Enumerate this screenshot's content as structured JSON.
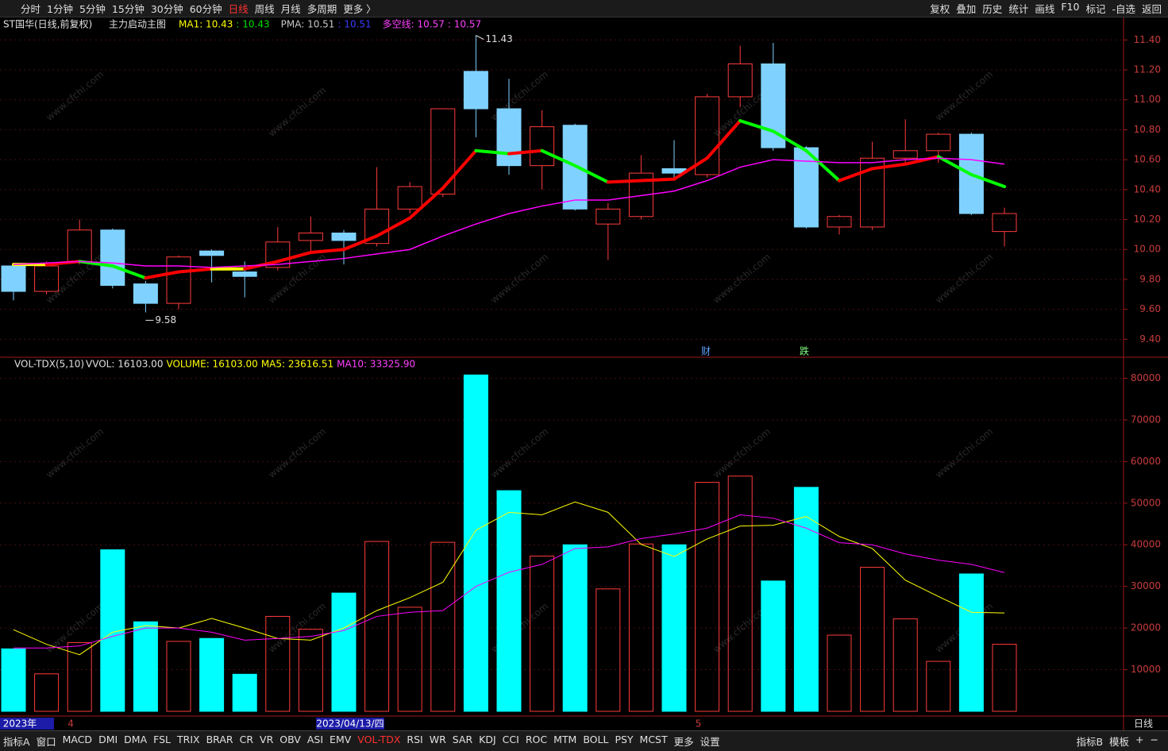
{
  "toolbar": {
    "left": [
      "分时",
      "1分钟",
      "5分钟",
      "15分钟",
      "30分钟",
      "60分钟",
      "日线",
      "周线",
      "月线",
      "多周期",
      "更多 〉"
    ],
    "right": [
      "复权",
      "叠加",
      "历史",
      "统计",
      "画线",
      "F10",
      "标记",
      "-自选",
      "返回"
    ]
  },
  "chart_data": [
    {
      "type": "candlestick",
      "title": "ST国华(日线,前复权)",
      "subtitle": "主力启动主图",
      "legend": [
        {
          "text": "MA1: 10.43",
          "color": "#ffff00"
        },
        {
          "text": ": 10.43",
          "color": "#00e000"
        },
        {
          "text": "PMA: 10.51",
          "color": "#c8c8c8"
        },
        {
          "text": ": 10.51",
          "color": "#3a3aff"
        },
        {
          "text": "多空线: 10.57",
          "color": "#ff40ff"
        },
        {
          "text": ": 10.57",
          "color": "#ff40ff"
        }
      ],
      "categories": [
        "2023年",
        null,
        "4",
        null,
        null,
        null,
        null,
        null,
        null,
        null,
        "2023/04/13/四",
        null,
        null,
        null,
        null,
        null,
        null,
        null,
        null,
        null,
        null,
        "5",
        null,
        null,
        null,
        null,
        null,
        null,
        null,
        null,
        null
      ],
      "open": [
        9.89,
        9.72,
        9.92,
        10.13,
        9.77,
        9.64,
        9.99,
        9.85,
        9.88,
        10.06,
        10.11,
        10.04,
        10.27,
        10.37,
        11.19,
        10.94,
        10.56,
        10.83,
        10.17,
        10.22,
        10.54,
        10.5,
        11.02,
        11.24,
        10.68,
        10.15,
        10.15,
        10.61,
        10.66,
        10.77,
        10.12
      ],
      "high": [
        9.9,
        9.92,
        10.2,
        10.14,
        9.79,
        9.96,
        10.0,
        9.92,
        10.15,
        10.22,
        10.13,
        10.55,
        10.45,
        10.94,
        11.43,
        11.14,
        10.93,
        10.84,
        10.31,
        10.63,
        10.73,
        11.04,
        11.36,
        11.38,
        10.69,
        10.23,
        10.72,
        10.87,
        10.78,
        10.78,
        10.28
      ],
      "low": [
        9.66,
        9.7,
        9.9,
        9.74,
        9.58,
        9.6,
        9.78,
        9.68,
        9.86,
        9.98,
        9.9,
        10.02,
        10.24,
        10.35,
        10.75,
        10.5,
        10.4,
        10.26,
        9.93,
        10.2,
        10.47,
        10.48,
        10.95,
        10.66,
        10.14,
        10.1,
        10.13,
        10.58,
        10.58,
        10.23,
        10.02
      ],
      "close": [
        9.72,
        9.89,
        10.13,
        9.76,
        9.64,
        9.95,
        9.96,
        9.82,
        10.05,
        10.11,
        10.06,
        10.27,
        10.42,
        10.94,
        10.94,
        10.56,
        10.82,
        10.27,
        10.27,
        10.51,
        10.51,
        11.02,
        11.24,
        10.68,
        10.15,
        10.22,
        10.61,
        10.66,
        10.77,
        10.24,
        10.24
      ],
      "up_color": "#ff3b3b",
      "down_color": "#7fd2ff",
      "series": [
        {
          "colors": {
            "up": "#ff0000",
            "down": "#00ff00",
            "flat": "#ffff00"
          },
          "values": [
            9.9,
            9.9,
            9.92,
            9.89,
            9.81,
            9.85,
            9.87,
            9.87,
            9.92,
            9.98,
            10.0,
            10.09,
            10.21,
            10.41,
            10.66,
            10.64,
            10.66,
            10.56,
            10.45,
            10.46,
            10.47,
            10.61,
            10.86,
            10.79,
            10.66,
            10.46,
            10.54,
            10.57,
            10.62,
            10.5,
            10.42
          ]
        },
        {
          "color": "#ff00ff",
          "values": [
            9.9,
            9.91,
            9.92,
            9.91,
            9.89,
            9.89,
            9.88,
            9.89,
            9.9,
            9.92,
            9.94,
            9.97,
            10.0,
            10.09,
            10.17,
            10.24,
            10.29,
            10.33,
            10.33,
            10.36,
            10.39,
            10.46,
            10.55,
            10.6,
            10.59,
            10.58,
            10.58,
            10.6,
            10.61,
            10.6,
            10.57
          ]
        }
      ],
      "max_label": "11.43",
      "min_label": "9.58",
      "events": [
        "财",
        "跌"
      ],
      "ylim": [
        9.28,
        11.55
      ],
      "yticks": [
        {
          "value": 11.4,
          "label": "11.40"
        },
        {
          "value": 11.2,
          "label": "11.20"
        },
        {
          "value": 11.0,
          "label": "11.00"
        },
        {
          "value": 10.8,
          "label": "10.80"
        },
        {
          "value": 10.6,
          "label": "10.60"
        },
        {
          "value": 10.4,
          "label": "10.40"
        },
        {
          "value": 10.2,
          "label": "10.20"
        },
        {
          "value": 10.0,
          "label": "10.00"
        },
        {
          "value": 9.8,
          "label": "9.80"
        },
        {
          "value": 9.6,
          "label": "9.60"
        },
        {
          "value": 9.4,
          "label": "9.40"
        }
      ],
      "grid": true
    },
    {
      "type": "bar",
      "title": "VOL-TDX(5,10)",
      "legend": [
        {
          "text": "VVOL: 16103.00",
          "color": "#e0e0e0"
        },
        {
          "text": "VOLUME: 16103.00",
          "color": "#ffff00"
        },
        {
          "text": "MA5: 23616.51",
          "color": "#ffff00"
        },
        {
          "text": "MA10: 33325.90",
          "color": "#ff40ff"
        }
      ],
      "values": [
        15000,
        9000,
        16500,
        38800,
        21500,
        16800,
        17500,
        8900,
        22800,
        19700,
        28400,
        40800,
        25000,
        40600,
        80800,
        53000,
        37300,
        40000,
        29400,
        40200,
        40000,
        55000,
        56500,
        31300,
        53800,
        18300,
        34600,
        22200,
        12000,
        33000,
        16103
      ],
      "up_color": "#ff3b3b",
      "down_color": "#00ffff",
      "series": [
        {
          "color": "#ffff00",
          "values": [
            19600,
            16100,
            13600,
            19000,
            20600,
            20000,
            22300,
            20000,
            17500,
            17100,
            20000,
            24200,
            27300,
            31000,
            43500,
            47800,
            47200,
            50300,
            47800,
            40100,
            37200,
            41400,
            44500,
            44700,
            46800,
            42000,
            39100,
            31500,
            27600,
            23800,
            23616.51
          ]
        },
        {
          "color": "#ff00ff",
          "values": [
            15200,
            15200,
            15700,
            18000,
            20000,
            20000,
            19000,
            17100,
            17500,
            18000,
            19400,
            22800,
            23800,
            24200,
            30000,
            33400,
            35300,
            39100,
            39500,
            41500,
            42600,
            44000,
            47200,
            46400,
            44000,
            40500,
            40000,
            37800,
            36300,
            35300,
            33325.9
          ]
        }
      ],
      "ylim": [
        0,
        82000
      ],
      "yticks": [
        10000,
        20000,
        30000,
        40000,
        50000,
        60000,
        70000,
        80000
      ],
      "grid": true
    }
  ],
  "period": "日线",
  "watermark": "www.cfchi.com",
  "tabs": {
    "left": [
      "指标A",
      "窗口",
      "MACD",
      "DMI",
      "DMA",
      "FSL",
      "TRIX",
      "BRAR",
      "CR",
      "VR",
      "OBV",
      "ASI",
      "EMV",
      "VOL-TDX",
      "RSI",
      "WR",
      "SAR",
      "KDJ",
      "CCI",
      "ROC",
      "MTM",
      "BOLL",
      "PSY",
      "MCST",
      "更多",
      "设置"
    ],
    "right": [
      "指标B",
      "模板",
      "+",
      "−"
    ]
  }
}
